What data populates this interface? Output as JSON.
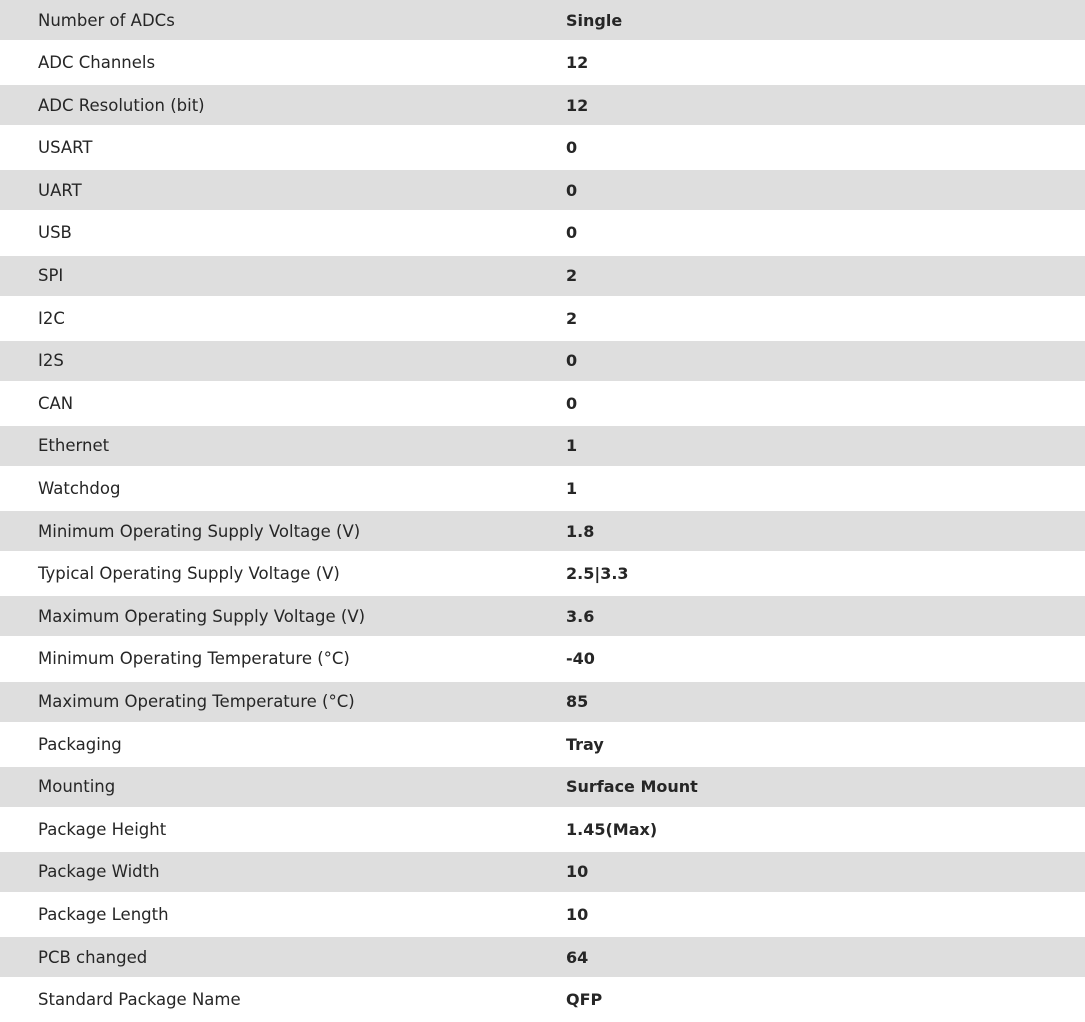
{
  "specs": [
    {
      "label": "Number of ADCs",
      "value": "Single"
    },
    {
      "label": "ADC Channels",
      "value": "12"
    },
    {
      "label": "ADC Resolution (bit)",
      "value": "12"
    },
    {
      "label": "USART",
      "value": "0"
    },
    {
      "label": "UART",
      "value": "0"
    },
    {
      "label": "USB",
      "value": "0"
    },
    {
      "label": "SPI",
      "value": "2"
    },
    {
      "label": "I2C",
      "value": "2"
    },
    {
      "label": "I2S",
      "value": "0"
    },
    {
      "label": "CAN",
      "value": "0"
    },
    {
      "label": "Ethernet",
      "value": "1"
    },
    {
      "label": "Watchdog",
      "value": "1"
    },
    {
      "label": "Minimum Operating Supply Voltage (V)",
      "value": "1.8"
    },
    {
      "label": "Typical Operating Supply Voltage (V)",
      "value": "2.5|3.3"
    },
    {
      "label": "Maximum Operating Supply Voltage (V)",
      "value": "3.6"
    },
    {
      "label": "Minimum Operating Temperature (°C)",
      "value": "-40"
    },
    {
      "label": "Maximum Operating Temperature (°C)",
      "value": "85"
    },
    {
      "label": "Packaging",
      "value": "Tray"
    },
    {
      "label": "Mounting",
      "value": "Surface Mount"
    },
    {
      "label": "Package Height",
      "value": "1.45(Max)"
    },
    {
      "label": "Package Width",
      "value": "10"
    },
    {
      "label": "Package Length",
      "value": "10"
    },
    {
      "label": "PCB changed",
      "value": "64"
    },
    {
      "label": "Standard Package Name",
      "value": "QFP"
    }
  ]
}
